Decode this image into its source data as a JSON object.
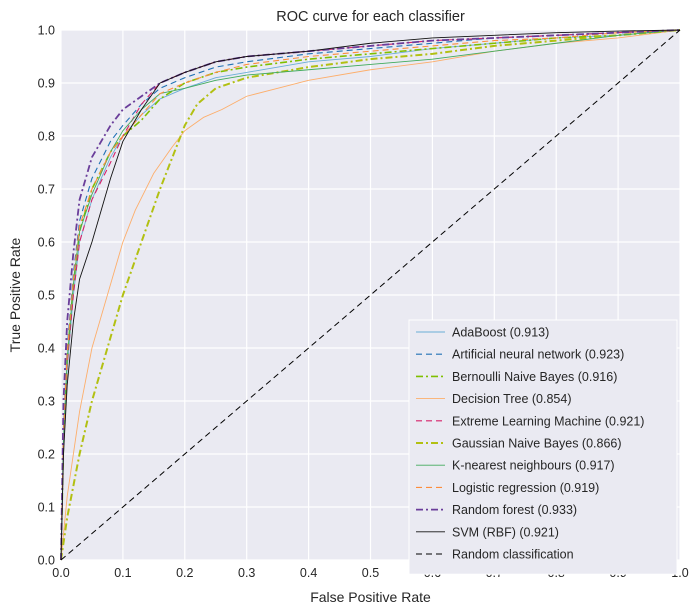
{
  "chart_data": {
    "type": "line",
    "title": "ROC curve for each classifier",
    "xlabel": "False Positive Rate",
    "ylabel": "True Positive Rate",
    "xlim": [
      0,
      1
    ],
    "ylim": [
      0,
      1
    ],
    "xticks": [
      "0.0",
      "0.1",
      "0.2",
      "0.3",
      "0.4",
      "0.5",
      "0.6",
      "0.7",
      "0.8",
      "0.9",
      "1.0"
    ],
    "yticks": [
      "0.0",
      "0.1",
      "0.2",
      "0.3",
      "0.4",
      "0.5",
      "0.6",
      "0.7",
      "0.8",
      "0.9",
      "1.0"
    ],
    "grid": true,
    "legend_position": "lower-right",
    "series": [
      {
        "name": "AdaBoost (0.913)",
        "color": "#6baed6",
        "dash": "solid",
        "width": 0.9,
        "points": [
          [
            0,
            0
          ],
          [
            0.004,
            0.2
          ],
          [
            0.01,
            0.36
          ],
          [
            0.02,
            0.5
          ],
          [
            0.03,
            0.6
          ],
          [
            0.05,
            0.68
          ],
          [
            0.08,
            0.76
          ],
          [
            0.1,
            0.8
          ],
          [
            0.13,
            0.84
          ],
          [
            0.16,
            0.87
          ],
          [
            0.2,
            0.89
          ],
          [
            0.25,
            0.91
          ],
          [
            0.3,
            0.92
          ],
          [
            0.4,
            0.94
          ],
          [
            0.5,
            0.95
          ],
          [
            0.6,
            0.965
          ],
          [
            0.7,
            0.975
          ],
          [
            0.8,
            0.985
          ],
          [
            0.9,
            0.99
          ],
          [
            1,
            1
          ]
        ]
      },
      {
        "name": "Artificial neural network (0.923)",
        "color": "#2171b5",
        "dash": "6,4",
        "width": 1.1,
        "points": [
          [
            0,
            0
          ],
          [
            0.004,
            0.25
          ],
          [
            0.01,
            0.4
          ],
          [
            0.02,
            0.54
          ],
          [
            0.03,
            0.64
          ],
          [
            0.05,
            0.72
          ],
          [
            0.08,
            0.79
          ],
          [
            0.1,
            0.82
          ],
          [
            0.13,
            0.86
          ],
          [
            0.16,
            0.89
          ],
          [
            0.2,
            0.91
          ],
          [
            0.25,
            0.93
          ],
          [
            0.3,
            0.94
          ],
          [
            0.4,
            0.955
          ],
          [
            0.5,
            0.965
          ],
          [
            0.6,
            0.975
          ],
          [
            0.7,
            0.985
          ],
          [
            0.8,
            0.99
          ],
          [
            0.9,
            0.995
          ],
          [
            1,
            1
          ]
        ]
      },
      {
        "name": "Bernoulli Naive Bayes (0.916)",
        "color": "#7fbf00",
        "dash": "7,3,2,3",
        "width": 1.6,
        "points": [
          [
            0,
            0
          ],
          [
            0.004,
            0.22
          ],
          [
            0.01,
            0.38
          ],
          [
            0.02,
            0.52
          ],
          [
            0.03,
            0.62
          ],
          [
            0.05,
            0.7
          ],
          [
            0.08,
            0.77
          ],
          [
            0.1,
            0.8
          ],
          [
            0.13,
            0.83
          ],
          [
            0.16,
            0.87
          ],
          [
            0.2,
            0.9
          ],
          [
            0.25,
            0.92
          ],
          [
            0.3,
            0.93
          ],
          [
            0.4,
            0.945
          ],
          [
            0.5,
            0.955
          ],
          [
            0.6,
            0.965
          ],
          [
            0.7,
            0.975
          ],
          [
            0.8,
            0.985
          ],
          [
            0.9,
            0.99
          ],
          [
            1,
            1
          ]
        ]
      },
      {
        "name": "Decision Tree (0.854)",
        "color": "#fdae6b",
        "dash": "solid",
        "width": 0.9,
        "points": [
          [
            0,
            0
          ],
          [
            0.01,
            0.12
          ],
          [
            0.03,
            0.28
          ],
          [
            0.05,
            0.4
          ],
          [
            0.08,
            0.52
          ],
          [
            0.1,
            0.6
          ],
          [
            0.12,
            0.66
          ],
          [
            0.15,
            0.73
          ],
          [
            0.18,
            0.78
          ],
          [
            0.2,
            0.81
          ],
          [
            0.23,
            0.835
          ],
          [
            0.26,
            0.85
          ],
          [
            0.3,
            0.875
          ],
          [
            0.35,
            0.89
          ],
          [
            0.4,
            0.905
          ],
          [
            0.5,
            0.925
          ],
          [
            0.6,
            0.94
          ],
          [
            0.7,
            0.96
          ],
          [
            0.8,
            0.975
          ],
          [
            0.9,
            0.985
          ],
          [
            1,
            1
          ]
        ]
      },
      {
        "name": "Extreme Learning Machine (0.921)",
        "color": "#d6226a",
        "dash": "6,4",
        "width": 1.1,
        "points": [
          [
            0,
            0
          ],
          [
            0.004,
            0.22
          ],
          [
            0.01,
            0.37
          ],
          [
            0.02,
            0.5
          ],
          [
            0.03,
            0.6
          ],
          [
            0.05,
            0.68
          ],
          [
            0.08,
            0.75
          ],
          [
            0.1,
            0.8
          ],
          [
            0.13,
            0.86
          ],
          [
            0.16,
            0.9
          ],
          [
            0.2,
            0.92
          ],
          [
            0.25,
            0.94
          ],
          [
            0.3,
            0.95
          ],
          [
            0.4,
            0.96
          ],
          [
            0.5,
            0.97
          ],
          [
            0.6,
            0.98
          ],
          [
            0.7,
            0.985
          ],
          [
            0.8,
            0.99
          ],
          [
            0.9,
            0.995
          ],
          [
            1,
            1
          ]
        ]
      },
      {
        "name": "Gaussian Naive Bayes (0.866)",
        "color": "#b2c012",
        "dash": "7,3,2,3",
        "width": 2,
        "points": [
          [
            0,
            0
          ],
          [
            0.01,
            0.08
          ],
          [
            0.03,
            0.2
          ],
          [
            0.05,
            0.3
          ],
          [
            0.08,
            0.42
          ],
          [
            0.1,
            0.5
          ],
          [
            0.13,
            0.6
          ],
          [
            0.16,
            0.7
          ],
          [
            0.18,
            0.76
          ],
          [
            0.2,
            0.82
          ],
          [
            0.22,
            0.86
          ],
          [
            0.25,
            0.89
          ],
          [
            0.3,
            0.91
          ],
          [
            0.4,
            0.93
          ],
          [
            0.5,
            0.945
          ],
          [
            0.6,
            0.955
          ],
          [
            0.7,
            0.97
          ],
          [
            0.8,
            0.98
          ],
          [
            0.9,
            0.99
          ],
          [
            1,
            1
          ]
        ]
      },
      {
        "name": "K-nearest neighbours (0.917)",
        "color": "#41ab5d",
        "dash": "solid",
        "width": 0.9,
        "points": [
          [
            0,
            0
          ],
          [
            0.004,
            0.23
          ],
          [
            0.01,
            0.38
          ],
          [
            0.02,
            0.52
          ],
          [
            0.03,
            0.62
          ],
          [
            0.05,
            0.69
          ],
          [
            0.08,
            0.77
          ],
          [
            0.1,
            0.81
          ],
          [
            0.13,
            0.85
          ],
          [
            0.16,
            0.88
          ],
          [
            0.2,
            0.89
          ],
          [
            0.25,
            0.905
          ],
          [
            0.3,
            0.915
          ],
          [
            0.4,
            0.925
          ],
          [
            0.5,
            0.935
          ],
          [
            0.6,
            0.945
          ],
          [
            0.7,
            0.96
          ],
          [
            0.8,
            0.975
          ],
          [
            0.9,
            0.99
          ],
          [
            1,
            1
          ]
        ]
      },
      {
        "name": "Logistic regression (0.919)",
        "color": "#fd8d3c",
        "dash": "6,4",
        "width": 1.1,
        "points": [
          [
            0,
            0
          ],
          [
            0.004,
            0.24
          ],
          [
            0.01,
            0.39
          ],
          [
            0.02,
            0.53
          ],
          [
            0.03,
            0.63
          ],
          [
            0.05,
            0.7
          ],
          [
            0.08,
            0.77
          ],
          [
            0.1,
            0.8
          ],
          [
            0.13,
            0.84
          ],
          [
            0.16,
            0.88
          ],
          [
            0.2,
            0.9
          ],
          [
            0.25,
            0.92
          ],
          [
            0.3,
            0.935
          ],
          [
            0.4,
            0.95
          ],
          [
            0.5,
            0.96
          ],
          [
            0.6,
            0.97
          ],
          [
            0.7,
            0.98
          ],
          [
            0.8,
            0.985
          ],
          [
            0.9,
            0.995
          ],
          [
            1,
            1
          ]
        ]
      },
      {
        "name": "Random forest (0.933)",
        "color": "#6a3d9a",
        "dash": "7,3,2,3",
        "width": 1.8,
        "points": [
          [
            0,
            0
          ],
          [
            0.004,
            0.3
          ],
          [
            0.01,
            0.45
          ],
          [
            0.02,
            0.58
          ],
          [
            0.03,
            0.68
          ],
          [
            0.05,
            0.76
          ],
          [
            0.08,
            0.82
          ],
          [
            0.1,
            0.85
          ],
          [
            0.13,
            0.875
          ],
          [
            0.16,
            0.9
          ],
          [
            0.2,
            0.92
          ],
          [
            0.25,
            0.94
          ],
          [
            0.3,
            0.95
          ],
          [
            0.4,
            0.96
          ],
          [
            0.5,
            0.97
          ],
          [
            0.6,
            0.98
          ],
          [
            0.7,
            0.985
          ],
          [
            0.8,
            0.99
          ],
          [
            0.9,
            0.995
          ],
          [
            1,
            1
          ]
        ]
      },
      {
        "name": "SVM (RBF) (0.921)",
        "color": "#111111",
        "dash": "solid",
        "width": 0.9,
        "points": [
          [
            0,
            0
          ],
          [
            0.004,
            0.2
          ],
          [
            0.01,
            0.33
          ],
          [
            0.02,
            0.45
          ],
          [
            0.03,
            0.53
          ],
          [
            0.05,
            0.6
          ],
          [
            0.08,
            0.72
          ],
          [
            0.1,
            0.79
          ],
          [
            0.13,
            0.85
          ],
          [
            0.16,
            0.9
          ],
          [
            0.2,
            0.92
          ],
          [
            0.25,
            0.94
          ],
          [
            0.3,
            0.95
          ],
          [
            0.4,
            0.96
          ],
          [
            0.5,
            0.975
          ],
          [
            0.6,
            0.985
          ],
          [
            0.7,
            0.99
          ],
          [
            0.8,
            0.995
          ],
          [
            0.9,
            0.998
          ],
          [
            1,
            1
          ]
        ]
      },
      {
        "name": "Random classification",
        "color": "#000000",
        "dash": "6,4",
        "width": 1,
        "points": [
          [
            0,
            0
          ],
          [
            1,
            1
          ]
        ]
      }
    ]
  }
}
